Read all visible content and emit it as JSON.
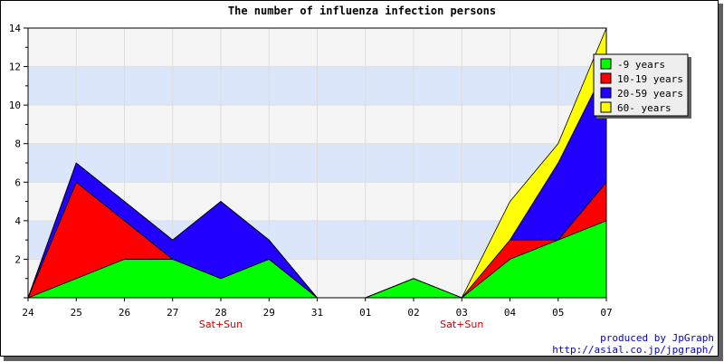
{
  "chart_data": {
    "type": "area",
    "stacked": true,
    "title": "The number of influenza infection persons",
    "categories": [
      "24",
      "25",
      "26",
      "27",
      "28",
      "29",
      "31",
      "01",
      "02",
      "03",
      "04",
      "05",
      "07"
    ],
    "category_notes": [
      {
        "category": "28",
        "text": "Sat+Sun"
      },
      {
        "category": "03",
        "text": "Sat+Sun"
      }
    ],
    "series": [
      {
        "name": "-9 years",
        "color": "#00ff00",
        "values": [
          0,
          1,
          2,
          2,
          1,
          2,
          0,
          0,
          1,
          0,
          2,
          3,
          4
        ]
      },
      {
        "name": "10-19 years",
        "color": "#ff0000",
        "values": [
          0,
          5,
          2,
          0,
          0,
          0,
          0,
          0,
          0,
          0,
          1,
          0,
          2
        ]
      },
      {
        "name": "20-59 years",
        "color": "#2200ff",
        "values": [
          0,
          1,
          1,
          1,
          4,
          1,
          0,
          0,
          0,
          0,
          0,
          4,
          6
        ]
      },
      {
        "name": "60- years",
        "color": "#ffff00",
        "values": [
          0,
          0,
          0,
          0,
          0,
          0,
          0,
          0,
          0,
          0,
          2,
          1,
          2
        ]
      }
    ],
    "ylim": [
      0,
      14
    ],
    "yticks": [
      2,
      4,
      6,
      8,
      10,
      12,
      14
    ],
    "grid": true,
    "band_colors": [
      "#f5f5f5",
      "#dbe6fb"
    ],
    "legend_position": "top-right"
  },
  "footer": {
    "credit": "produced by JpGraph",
    "url": "http://asial.co.jp/jpgraph/"
  }
}
